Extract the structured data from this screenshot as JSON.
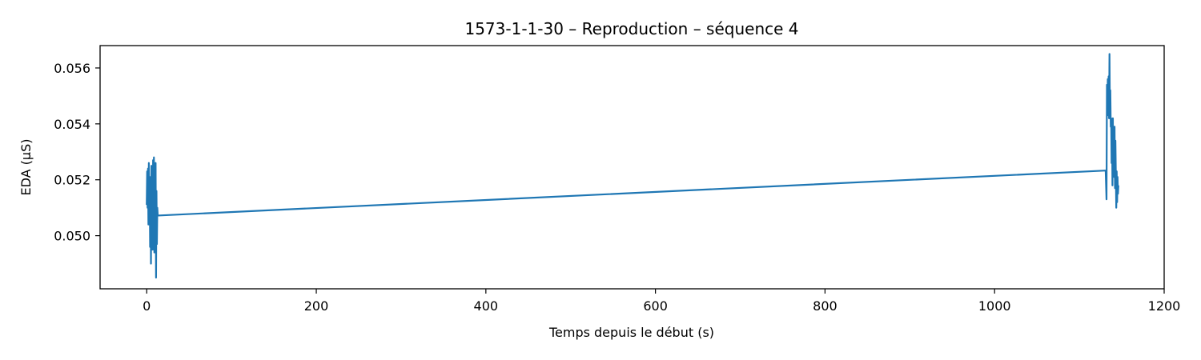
{
  "chart_data": {
    "type": "line",
    "title": "1573-1-1-30 – Reproduction – séquence 4",
    "xlabel": "Temps depuis le début (s)",
    "ylabel": "EDA (µS)",
    "xlim": [
      -55,
      1200
    ],
    "ylim": [
      0.0481,
      0.0568
    ],
    "xticks": [
      0,
      200,
      400,
      600,
      800,
      1000,
      1200
    ],
    "xtick_labels": [
      "0",
      "200",
      "400",
      "600",
      "800",
      "1000",
      "1200"
    ],
    "yticks": [
      0.05,
      0.052,
      0.054,
      0.056
    ],
    "ytick_labels": [
      "0.050",
      "0.052",
      "0.054",
      "0.056"
    ],
    "grid": false,
    "series": [
      {
        "color": "#1f77b4",
        "x": [
          0,
          0.5,
          1,
          1.5,
          2,
          2.5,
          3,
          3.5,
          4,
          4.5,
          5,
          5.5,
          6,
          6.5,
          7,
          7.5,
          8,
          8.5,
          9,
          9.5,
          10,
          10.5,
          11,
          11.5,
          12,
          12.5,
          13,
          1131,
          1132,
          1132.5,
          1133,
          1133.5,
          1134,
          1134.5,
          1135,
          1135.5,
          1136,
          1136.5,
          1137,
          1137.5,
          1138,
          1138.5,
          1139,
          1139.5,
          1140,
          1140.5,
          1141,
          1141.5,
          1142,
          1142.5,
          1143,
          1143.5,
          1144,
          1144.5,
          1145,
          1145.5,
          1146
        ],
        "y": [
          0.0511,
          0.0523,
          0.051,
          0.0524,
          0.0504,
          0.0526,
          0.0507,
          0.052,
          0.0496,
          0.0521,
          0.049,
          0.0525,
          0.0501,
          0.0519,
          0.0495,
          0.0527,
          0.05,
          0.0528,
          0.0494,
          0.0522,
          0.0506,
          0.0526,
          0.0485,
          0.0516,
          0.0497,
          0.051,
          0.05072,
          0.05233,
          0.0513,
          0.0554,
          0.0543,
          0.0556,
          0.0547,
          0.0557,
          0.0542,
          0.0565,
          0.0544,
          0.0552,
          0.0539,
          0.0542,
          0.0526,
          0.0541,
          0.0518,
          0.0542,
          0.0523,
          0.0536,
          0.0521,
          0.0539,
          0.0517,
          0.0534,
          0.0522,
          0.051,
          0.0523,
          0.0512,
          0.0521,
          0.0515,
          0.0518
        ]
      }
    ]
  }
}
